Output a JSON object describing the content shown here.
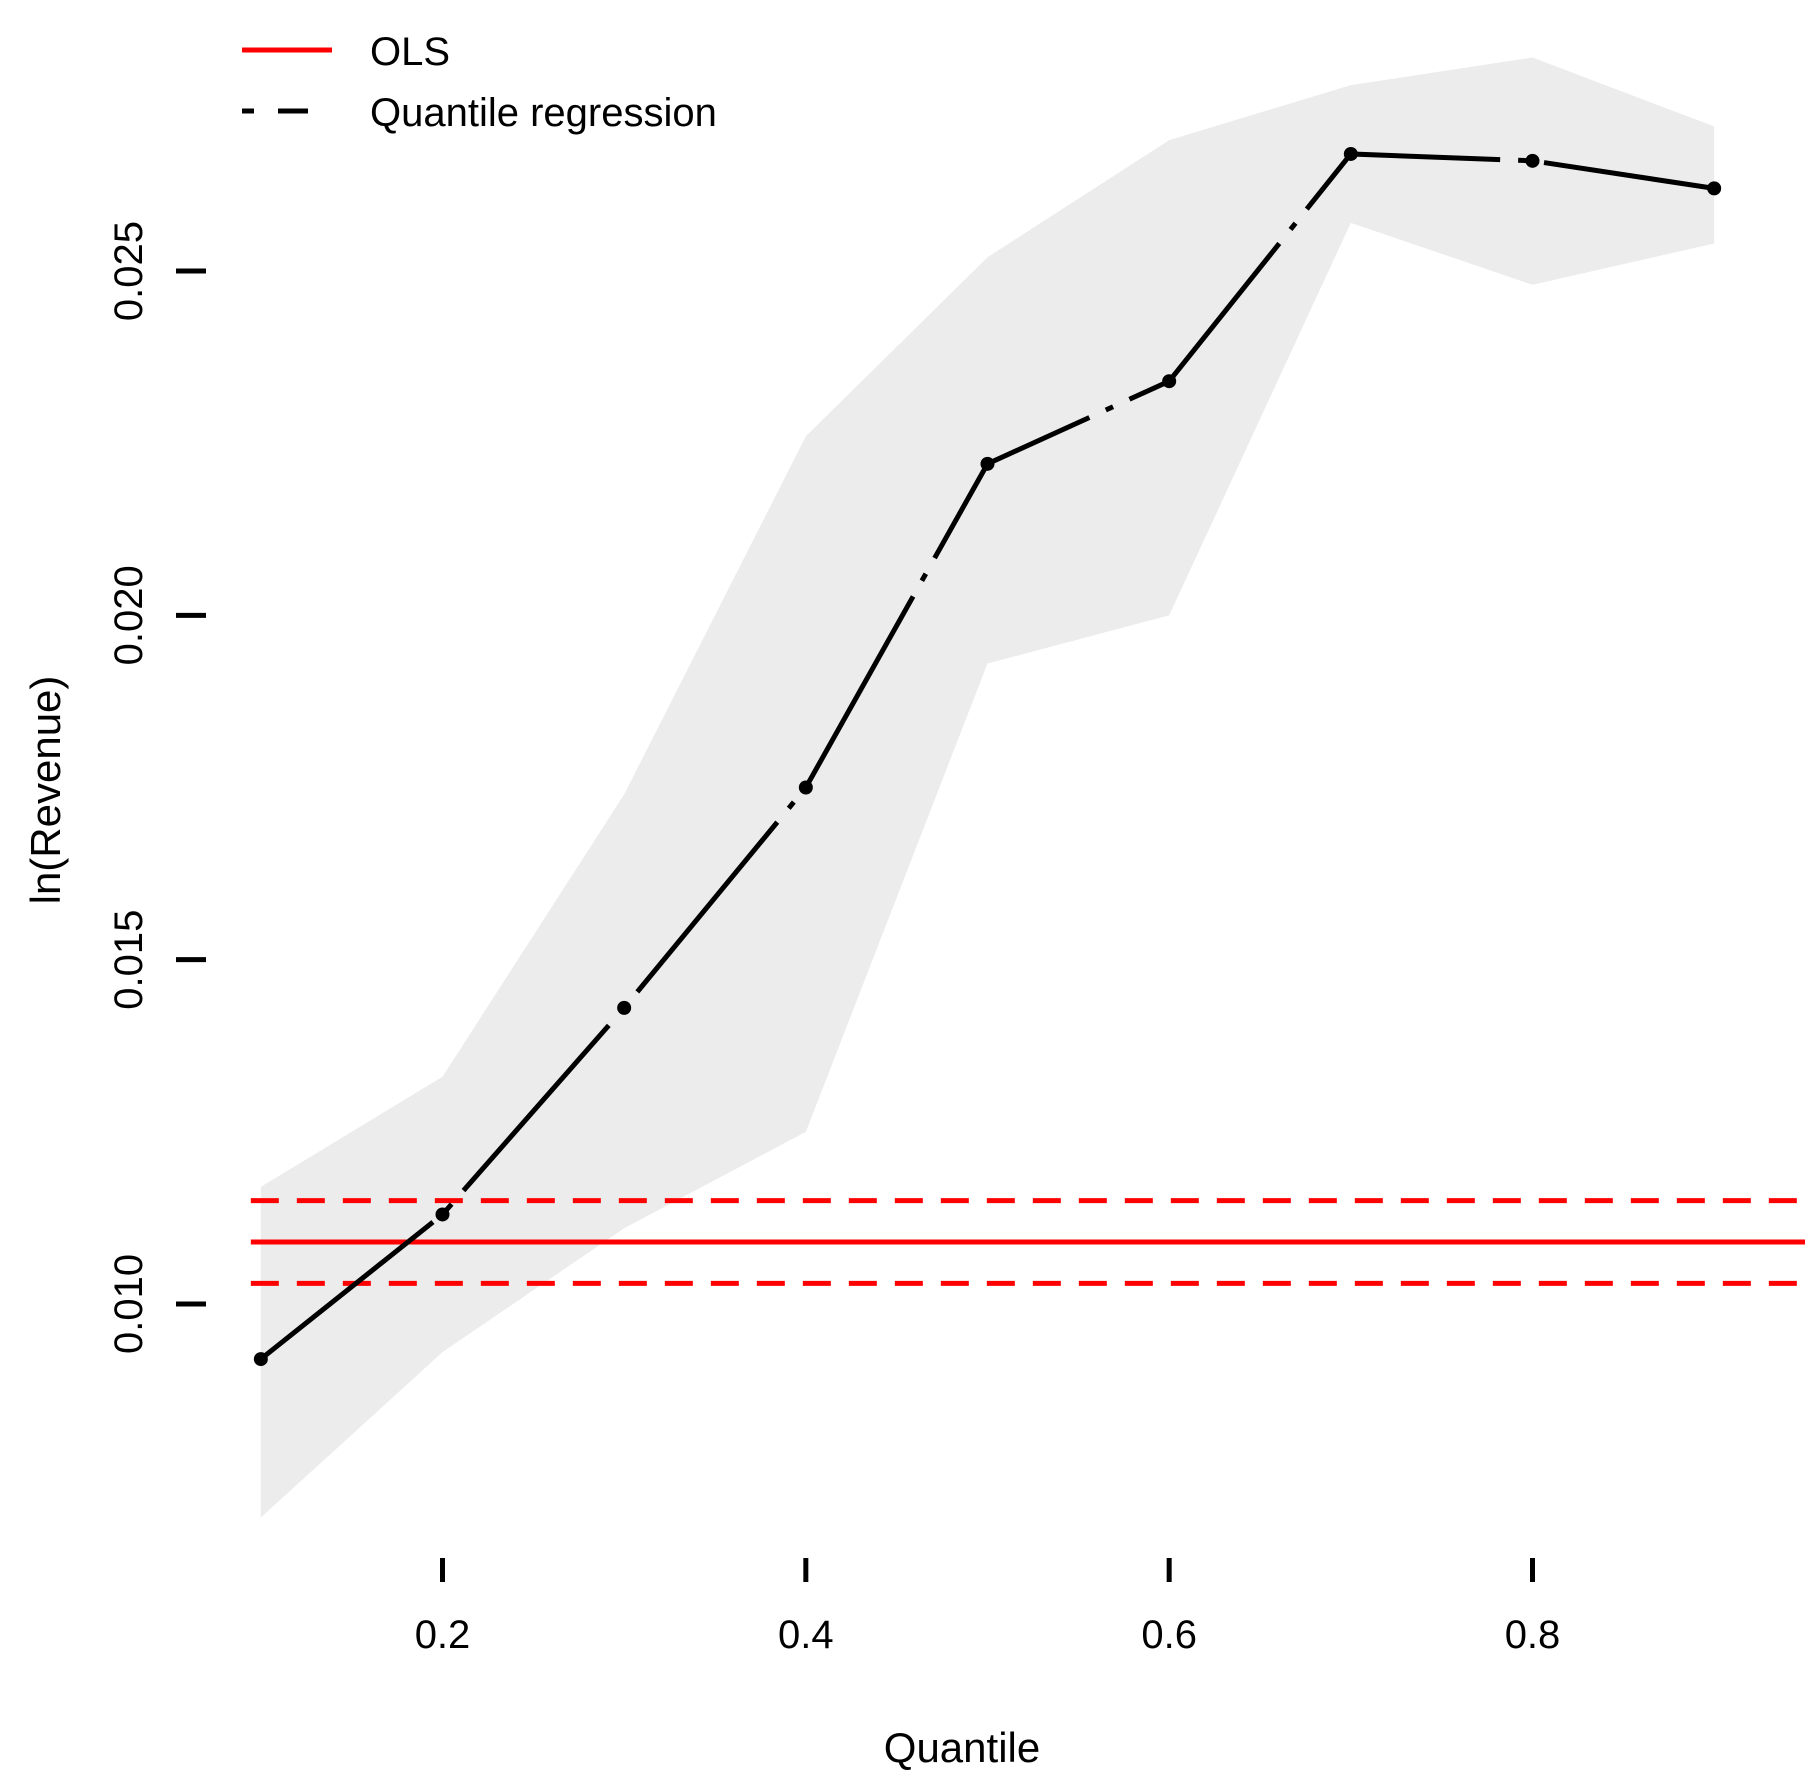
{
  "chart_data": {
    "type": "line",
    "xlabel": "Quantile",
    "ylabel": "ln(Revenue)",
    "xlim": [
      0.05,
      0.95
    ],
    "ylim": [
      0.0065,
      0.0285
    ],
    "x_ticks": [
      0.2,
      0.4,
      0.6,
      0.8
    ],
    "x_tick_labels": [
      "0.2",
      "0.4",
      "0.6",
      "0.8"
    ],
    "y_ticks": [
      0.01,
      0.015,
      0.02,
      0.025
    ],
    "y_tick_labels": [
      "0.010",
      "0.015",
      "0.020",
      "0.025"
    ],
    "grid": false,
    "legend": {
      "position": "top-left",
      "entries": [
        {
          "label": "OLS",
          "style": "solid",
          "color": "#ff0000"
        },
        {
          "label": "Quantile regression",
          "style": "dashed",
          "color": "#000000"
        }
      ]
    },
    "quantile_regression": {
      "x": [
        0.1,
        0.2,
        0.3,
        0.4,
        0.5,
        0.6,
        0.7,
        0.8,
        0.9
      ],
      "y": [
        0.0092,
        0.0113,
        0.0143,
        0.0175,
        0.0222,
        0.0234,
        0.0267,
        0.0266,
        0.0262
      ],
      "ci_lower": [
        0.0069,
        0.0093,
        0.0111,
        0.0125,
        0.0193,
        0.02,
        0.0257,
        0.0248,
        0.0254
      ],
      "ci_upper": [
        0.0117,
        0.0133,
        0.0174,
        0.0226,
        0.0252,
        0.0269,
        0.0277,
        0.0281,
        0.0271
      ],
      "color": "#000000",
      "band_color": "#ececec"
    },
    "ols": {
      "estimate": 0.0109,
      "ci_lower": 0.0103,
      "ci_upper": 0.0115,
      "color": "#ff0000"
    }
  }
}
